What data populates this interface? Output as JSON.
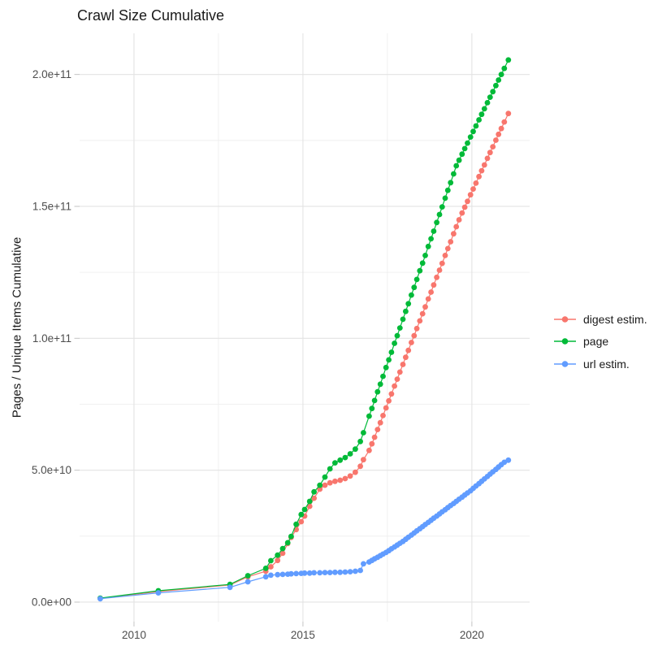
{
  "page": {
    "background": "#ffffff"
  },
  "chart_data": {
    "type": "line",
    "title": "Crawl Size Cumulative",
    "xlabel": "",
    "ylabel": "Pages / Unique Items Cumulative",
    "grid": true,
    "legend_position": "right",
    "note": "point values stored in billions (1e9) of pages/items; x is decimal year",
    "x_axis": {
      "range": [
        2008.39,
        2021.71
      ],
      "ticks": [
        {
          "v": 2010,
          "label": "2010"
        },
        {
          "v": 2015,
          "label": "2015"
        },
        {
          "v": 2020,
          "label": "2020"
        }
      ],
      "minor": [
        2012.5,
        2017.5
      ]
    },
    "y_axis": {
      "range_e9": [
        -7.4,
        215.6
      ],
      "ticks": [
        {
          "v": 0,
          "label": "0.0e+00"
        },
        {
          "v": 50,
          "label": "5.0e+10"
        },
        {
          "v": 100,
          "label": "1.0e+11"
        },
        {
          "v": 150,
          "label": "1.5e+11"
        },
        {
          "v": 200,
          "label": "2.0e+11"
        }
      ],
      "minor": [
        25,
        75,
        125,
        175
      ]
    },
    "styles": {
      "major_grid_color": "#e3e3e3",
      "minor_grid_color": "#ededed",
      "tick_color": "#c4c4c4",
      "tick_label_color": "#4d4d4d",
      "point_radius": 3.4
    },
    "series": [
      {
        "name": "digest estim.",
        "color": "#F8766D",
        "points": [
          [
            2009,
            1.4
          ],
          [
            2010.72,
            4.0
          ],
          [
            2012.84,
            6.5
          ],
          [
            2013.37,
            9.6
          ],
          [
            2013.9,
            11.7
          ],
          [
            2014.05,
            13.4
          ],
          [
            2014.25,
            15.8
          ],
          [
            2014.4,
            18.5
          ],
          [
            2014.55,
            22.2
          ],
          [
            2014.65,
            24.5
          ],
          [
            2014.8,
            27.5
          ],
          [
            2014.95,
            30.5
          ],
          [
            2015.05,
            32.6
          ],
          [
            2015.2,
            36.3
          ],
          [
            2015.33,
            39.4
          ],
          [
            2015.5,
            42.8
          ],
          [
            2015.65,
            44.3
          ],
          [
            2015.8,
            45.2
          ],
          [
            2015.95,
            45.8
          ],
          [
            2016.1,
            46.2
          ],
          [
            2016.25,
            46.8
          ],
          [
            2016.4,
            47.8
          ],
          [
            2016.55,
            49.2
          ],
          [
            2016.7,
            51.5
          ],
          [
            2016.79,
            54.0
          ],
          [
            2016.96,
            57.5
          ],
          [
            2017.04,
            60.0
          ],
          [
            2017.12,
            62.5
          ],
          [
            2017.21,
            65.4
          ],
          [
            2017.29,
            68.0
          ],
          [
            2017.37,
            70.7
          ],
          [
            2017.46,
            73.6
          ],
          [
            2017.54,
            76.3
          ],
          [
            2017.62,
            78.9
          ],
          [
            2017.71,
            81.9
          ],
          [
            2017.79,
            84.5
          ],
          [
            2017.87,
            87.2
          ],
          [
            2017.96,
            90.1
          ],
          [
            2018.04,
            92.8
          ],
          [
            2018.12,
            95.4
          ],
          [
            2018.21,
            98.4
          ],
          [
            2018.29,
            101.0
          ],
          [
            2018.37,
            103.7
          ],
          [
            2018.46,
            106.6
          ],
          [
            2018.54,
            109.3
          ],
          [
            2018.62,
            111.9
          ],
          [
            2018.71,
            114.9
          ],
          [
            2018.79,
            117.5
          ],
          [
            2018.87,
            120.2
          ],
          [
            2018.96,
            123.1
          ],
          [
            2019.04,
            125.8
          ],
          [
            2019.12,
            128.4
          ],
          [
            2019.21,
            131.4
          ],
          [
            2019.29,
            134.0
          ],
          [
            2019.37,
            136.6
          ],
          [
            2019.46,
            139.6
          ],
          [
            2019.54,
            142.3
          ],
          [
            2019.62,
            144.9
          ],
          [
            2019.71,
            147.5
          ],
          [
            2019.79,
            149.7
          ],
          [
            2019.87,
            151.9
          ],
          [
            2019.96,
            154.4
          ],
          [
            2020.04,
            156.6
          ],
          [
            2020.12,
            158.8
          ],
          [
            2020.21,
            161.3
          ],
          [
            2020.29,
            163.5
          ],
          [
            2020.37,
            165.7
          ],
          [
            2020.46,
            168.2
          ],
          [
            2020.54,
            170.4
          ],
          [
            2020.62,
            172.6
          ],
          [
            2020.71,
            175.1
          ],
          [
            2020.79,
            177.3
          ],
          [
            2020.87,
            179.5
          ],
          [
            2020.96,
            182.0
          ],
          [
            2021.08,
            185.2
          ]
        ]
      },
      {
        "name": "page",
        "color": "#00BA38",
        "points": [
          [
            2009,
            1.5
          ],
          [
            2010.72,
            4.3
          ],
          [
            2012.84,
            6.7
          ],
          [
            2013.37,
            10.0
          ],
          [
            2013.9,
            12.8
          ],
          [
            2014.05,
            15.7
          ],
          [
            2014.25,
            17.8
          ],
          [
            2014.4,
            20.3
          ],
          [
            2014.55,
            22.5
          ],
          [
            2014.65,
            24.9
          ],
          [
            2014.8,
            29.5
          ],
          [
            2014.95,
            33.2
          ],
          [
            2015.05,
            35.1
          ],
          [
            2015.2,
            38.2
          ],
          [
            2015.33,
            41.8
          ],
          [
            2015.5,
            44.3
          ],
          [
            2015.65,
            47.4
          ],
          [
            2015.8,
            50.5
          ],
          [
            2015.95,
            52.8
          ],
          [
            2016.1,
            53.8
          ],
          [
            2016.25,
            54.8
          ],
          [
            2016.4,
            56.2
          ],
          [
            2016.55,
            58.0
          ],
          [
            2016.7,
            60.9
          ],
          [
            2016.79,
            64.2
          ],
          [
            2016.96,
            70.5
          ],
          [
            2017.04,
            73.4
          ],
          [
            2017.12,
            76.4
          ],
          [
            2017.21,
            79.7
          ],
          [
            2017.29,
            82.6
          ],
          [
            2017.37,
            85.6
          ],
          [
            2017.46,
            88.9
          ],
          [
            2017.54,
            91.8
          ],
          [
            2017.62,
            94.7
          ],
          [
            2017.71,
            98.1
          ],
          [
            2017.79,
            101.0
          ],
          [
            2017.87,
            103.9
          ],
          [
            2017.96,
            107.2
          ],
          [
            2018.04,
            110.2
          ],
          [
            2018.12,
            113.1
          ],
          [
            2018.21,
            116.4
          ],
          [
            2018.29,
            119.3
          ],
          [
            2018.37,
            122.3
          ],
          [
            2018.46,
            125.6
          ],
          [
            2018.54,
            128.5
          ],
          [
            2018.62,
            131.4
          ],
          [
            2018.71,
            134.8
          ],
          [
            2018.79,
            137.7
          ],
          [
            2018.87,
            140.6
          ],
          [
            2018.96,
            143.9
          ],
          [
            2019.04,
            146.9
          ],
          [
            2019.12,
            149.8
          ],
          [
            2019.21,
            153.1
          ],
          [
            2019.29,
            156.1
          ],
          [
            2019.37,
            159.0
          ],
          [
            2019.46,
            162.3
          ],
          [
            2019.54,
            165.4
          ],
          [
            2019.62,
            167.5
          ],
          [
            2019.71,
            169.8
          ],
          [
            2019.79,
            171.9
          ],
          [
            2019.87,
            174.0
          ],
          [
            2019.96,
            176.3
          ],
          [
            2020.04,
            178.4
          ],
          [
            2020.12,
            180.5
          ],
          [
            2020.21,
            182.8
          ],
          [
            2020.29,
            184.9
          ],
          [
            2020.37,
            187.0
          ],
          [
            2020.46,
            189.3
          ],
          [
            2020.54,
            191.4
          ],
          [
            2020.62,
            193.5
          ],
          [
            2020.71,
            195.8
          ],
          [
            2020.79,
            197.9
          ],
          [
            2020.87,
            200.0
          ],
          [
            2020.96,
            202.3
          ],
          [
            2021.08,
            205.5
          ]
        ]
      },
      {
        "name": "url estim.",
        "color": "#619CFF",
        "points": [
          [
            2009,
            1.3
          ],
          [
            2010.72,
            3.5
          ],
          [
            2012.84,
            5.6
          ],
          [
            2013.37,
            7.7
          ],
          [
            2013.9,
            9.6
          ],
          [
            2014.05,
            10.2
          ],
          [
            2014.25,
            10.4
          ],
          [
            2014.4,
            10.5
          ],
          [
            2014.55,
            10.6
          ],
          [
            2014.65,
            10.7
          ],
          [
            2014.8,
            10.8
          ],
          [
            2014.95,
            10.9
          ],
          [
            2015.05,
            11.0
          ],
          [
            2015.2,
            11.0
          ],
          [
            2015.33,
            11.1
          ],
          [
            2015.5,
            11.1
          ],
          [
            2015.65,
            11.2
          ],
          [
            2015.8,
            11.2
          ],
          [
            2015.95,
            11.3
          ],
          [
            2016.1,
            11.3
          ],
          [
            2016.25,
            11.4
          ],
          [
            2016.4,
            11.5
          ],
          [
            2016.55,
            11.7
          ],
          [
            2016.7,
            12.0
          ],
          [
            2016.79,
            14.5
          ],
          [
            2016.96,
            15.2
          ],
          [
            2017.04,
            15.8
          ],
          [
            2017.12,
            16.4
          ],
          [
            2017.21,
            17.0
          ],
          [
            2017.29,
            17.6
          ],
          [
            2017.37,
            18.2
          ],
          [
            2017.46,
            18.8
          ],
          [
            2017.54,
            19.5
          ],
          [
            2017.62,
            20.2
          ],
          [
            2017.71,
            20.9
          ],
          [
            2017.79,
            21.6
          ],
          [
            2017.87,
            22.3
          ],
          [
            2017.96,
            23.0
          ],
          [
            2018.04,
            23.8
          ],
          [
            2018.12,
            24.6
          ],
          [
            2018.21,
            25.4
          ],
          [
            2018.29,
            26.2
          ],
          [
            2018.37,
            27.0
          ],
          [
            2018.46,
            27.8
          ],
          [
            2018.54,
            28.6
          ],
          [
            2018.62,
            29.4
          ],
          [
            2018.71,
            30.2
          ],
          [
            2018.79,
            31.0
          ],
          [
            2018.87,
            31.8
          ],
          [
            2018.96,
            32.6
          ],
          [
            2019.04,
            33.4
          ],
          [
            2019.12,
            34.2
          ],
          [
            2019.21,
            35.0
          ],
          [
            2019.29,
            35.8
          ],
          [
            2019.37,
            36.6
          ],
          [
            2019.46,
            37.4
          ],
          [
            2019.54,
            38.2
          ],
          [
            2019.62,
            39.0
          ],
          [
            2019.71,
            39.8
          ],
          [
            2019.79,
            40.6
          ],
          [
            2019.87,
            41.4
          ],
          [
            2019.96,
            42.2
          ],
          [
            2020.04,
            43.1
          ],
          [
            2020.12,
            44.0
          ],
          [
            2020.21,
            44.9
          ],
          [
            2020.29,
            45.8
          ],
          [
            2020.37,
            46.7
          ],
          [
            2020.46,
            47.6
          ],
          [
            2020.54,
            48.5
          ],
          [
            2020.62,
            49.4
          ],
          [
            2020.71,
            50.3
          ],
          [
            2020.79,
            51.2
          ],
          [
            2020.87,
            52.1
          ],
          [
            2020.96,
            53.0
          ],
          [
            2021.08,
            53.8
          ]
        ]
      }
    ]
  }
}
